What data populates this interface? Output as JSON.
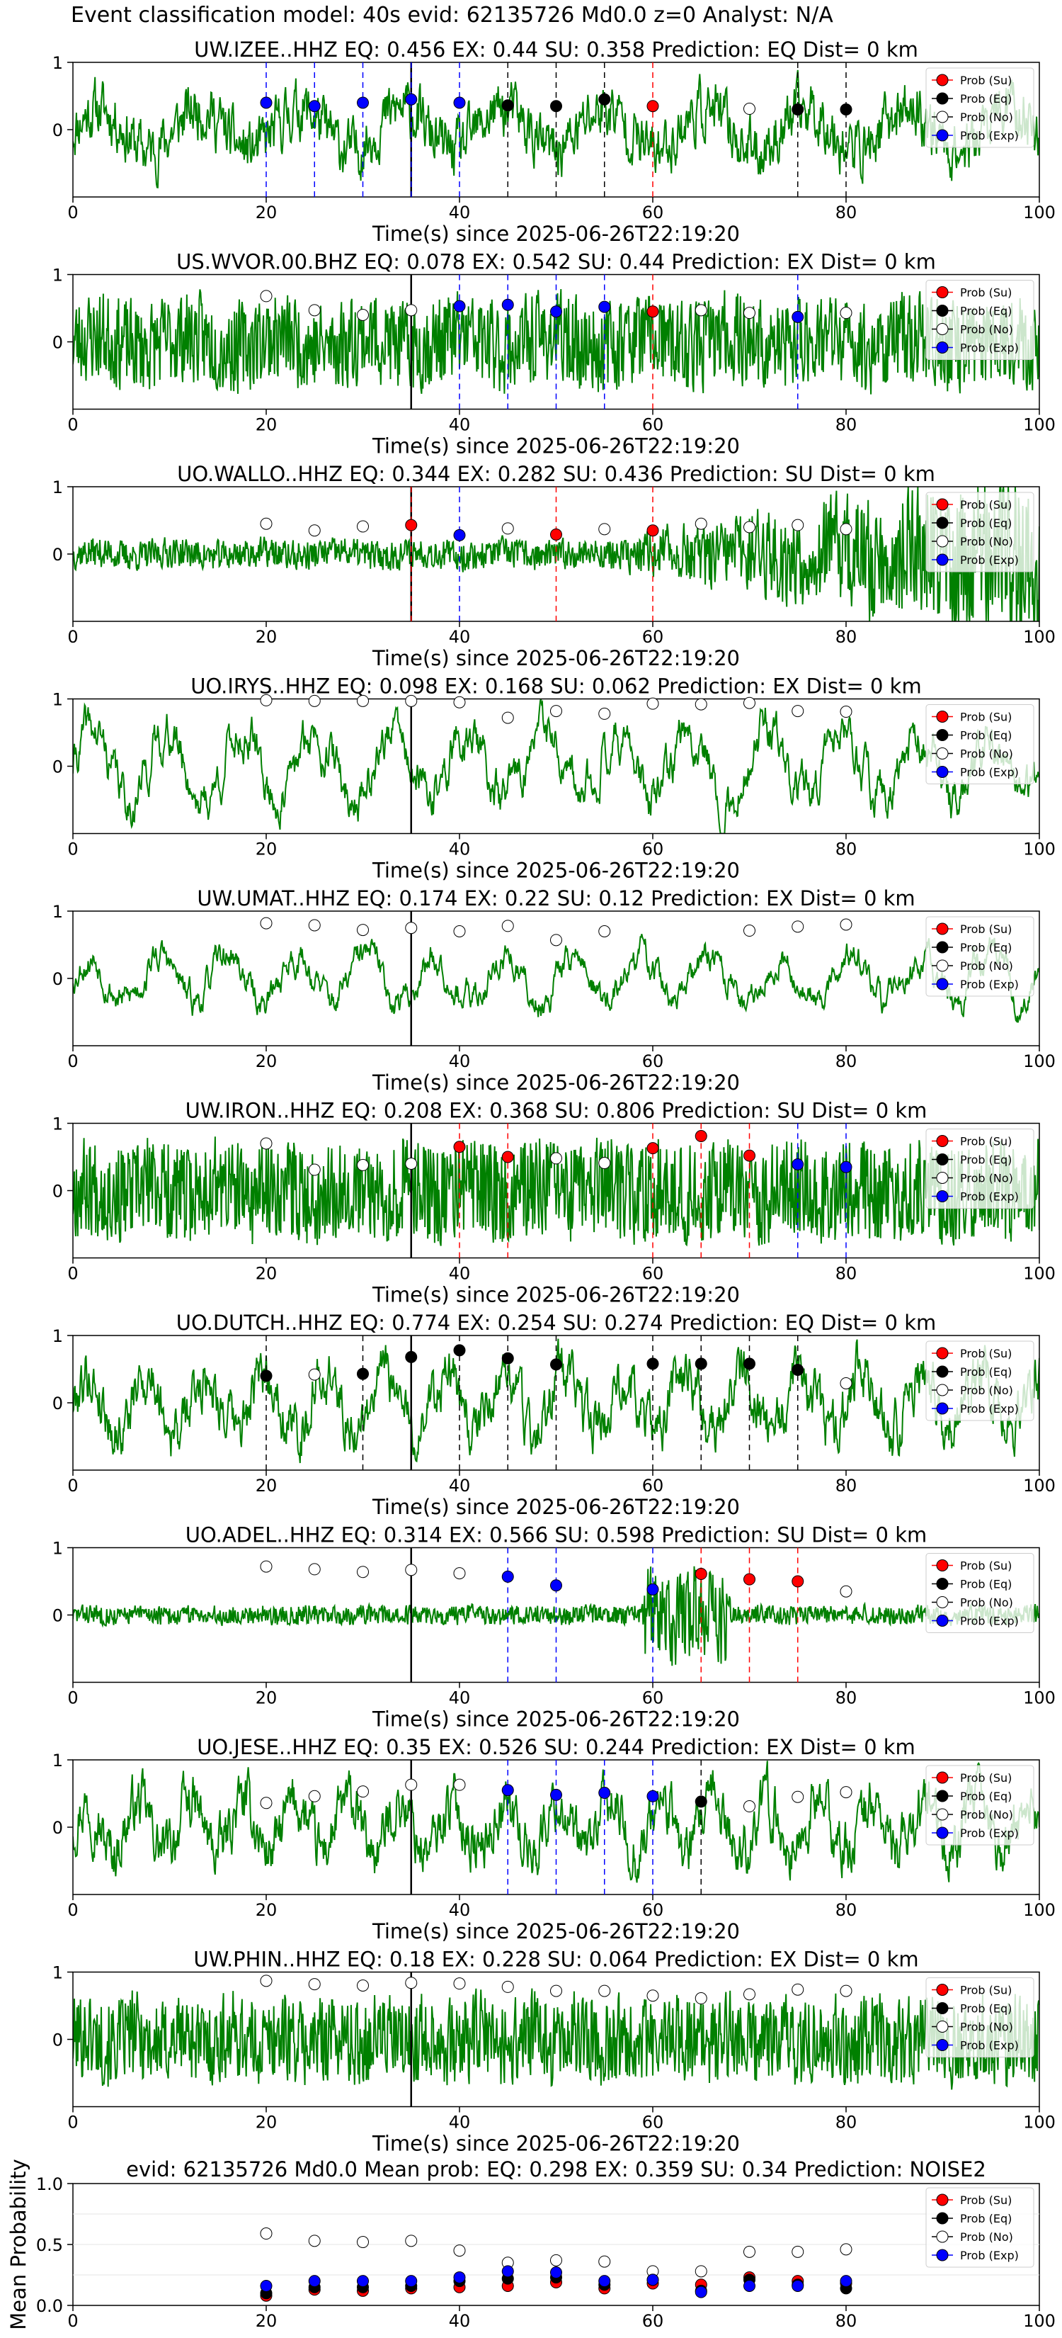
{
  "figure_title": "Event classification model: 40s evid: 62135726 Md0.0 z=0 Analyst: N/A",
  "chart_data": {
    "type": "line",
    "x_range": [
      0,
      100
    ],
    "x_ticks": [
      0,
      20,
      40,
      60,
      80,
      100
    ],
    "waveform_color": "#008000",
    "origin_time_line_x": 35,
    "legend": {
      "placement": "top-right",
      "entries": [
        {
          "label": "Prob (Su)",
          "color": "#ff0000",
          "key": "su"
        },
        {
          "label": "Prob (Eq)",
          "color": "#000000",
          "key": "eq"
        },
        {
          "label": "Prob (No)",
          "color": "#ffffff",
          "key": "no"
        },
        {
          "label": "Prob (Exp)",
          "color": "#0000ff",
          "key": "ex"
        }
      ]
    },
    "probability_window_starts": [
      20,
      25,
      30,
      35,
      40,
      45,
      50,
      55,
      60,
      65,
      70,
      75,
      80
    ],
    "stations": [
      {
        "title": "UW.IZEE..HHZ   EQ: 0.456  EX: 0.44  SU: 0.358   Prediction: EQ    Dist= 0 km",
        "xlabel": "Time(s) since 2025-06-26T22:19:20",
        "y_ticks": [
          "1",
          "0"
        ],
        "amplitude": 0.34,
        "smooth": 0.55,
        "baseline": 0.4,
        "seed": 11,
        "markers": [
          {
            "x": 20,
            "cls": "ex",
            "p": 0.4
          },
          {
            "x": 25,
            "cls": "ex",
            "p": 0.35
          },
          {
            "x": 30,
            "cls": "ex",
            "p": 0.4
          },
          {
            "x": 35,
            "cls": "ex",
            "p": 0.45
          },
          {
            "x": 40,
            "cls": "ex",
            "p": 0.4
          },
          {
            "x": 45,
            "cls": "eq",
            "p": 0.36
          },
          {
            "x": 50,
            "cls": "eq",
            "p": 0.35
          },
          {
            "x": 55,
            "cls": "eq",
            "p": 0.45
          },
          {
            "x": 60,
            "cls": "su",
            "p": 0.35
          },
          {
            "x": 70,
            "cls": "no",
            "p": 0.31
          },
          {
            "x": 75,
            "cls": "eq",
            "p": 0.3
          },
          {
            "x": 80,
            "cls": "eq",
            "p": 0.3
          }
        ]
      },
      {
        "title": "US.WVOR.00.BHZ   EQ: 0.078  EX: 0.542  SU: 0.44   Prediction: EX    Dist= 0 km",
        "xlabel": "Time(s) since 2025-06-26T22:19:20",
        "y_ticks": [
          "1",
          "0"
        ],
        "amplitude": 0.35,
        "smooth": 0.15,
        "baseline": 0.0,
        "seed": 23,
        "markers": [
          {
            "x": 20,
            "cls": "no",
            "p": 0.68
          },
          {
            "x": 25,
            "cls": "no",
            "p": 0.47
          },
          {
            "x": 30,
            "cls": "no",
            "p": 0.4
          },
          {
            "x": 35,
            "cls": "no",
            "p": 0.47
          },
          {
            "x": 40,
            "cls": "ex",
            "p": 0.53
          },
          {
            "x": 45,
            "cls": "ex",
            "p": 0.55
          },
          {
            "x": 50,
            "cls": "ex",
            "p": 0.45
          },
          {
            "x": 55,
            "cls": "ex",
            "p": 0.52
          },
          {
            "x": 60,
            "cls": "su",
            "p": 0.45
          },
          {
            "x": 65,
            "cls": "no",
            "p": 0.47
          },
          {
            "x": 70,
            "cls": "no",
            "p": 0.43
          },
          {
            "x": 75,
            "cls": "ex",
            "p": 0.37
          },
          {
            "x": 80,
            "cls": "no",
            "p": 0.43
          }
        ]
      },
      {
        "title": "UO.WALLO..HHZ   EQ: 0.344  EX: 0.282  SU: 0.436   Prediction: SU    Dist= 0 km",
        "xlabel": "Time(s) since 2025-06-26T22:19:20",
        "y_ticks": [
          "1",
          "0"
        ],
        "amplitude": 0.12,
        "smooth": 0.2,
        "baseline": 0.0,
        "seed": 37,
        "growth": true,
        "markers": [
          {
            "x": 20,
            "cls": "no",
            "p": 0.45
          },
          {
            "x": 25,
            "cls": "no",
            "p": 0.35
          },
          {
            "x": 30,
            "cls": "no",
            "p": 0.41
          },
          {
            "x": 35,
            "cls": "su",
            "p": 0.43
          },
          {
            "x": 40,
            "cls": "ex",
            "p": 0.28
          },
          {
            "x": 45,
            "cls": "no",
            "p": 0.38
          },
          {
            "x": 50,
            "cls": "su",
            "p": 0.29
          },
          {
            "x": 55,
            "cls": "no",
            "p": 0.37
          },
          {
            "x": 60,
            "cls": "su",
            "p": 0.35
          },
          {
            "x": 65,
            "cls": "no",
            "p": 0.45
          },
          {
            "x": 70,
            "cls": "no",
            "p": 0.4
          },
          {
            "x": 75,
            "cls": "no",
            "p": 0.43
          },
          {
            "x": 80,
            "cls": "no",
            "p": 0.37
          }
        ]
      },
      {
        "title": "UO.IRYS..HHZ   EQ: 0.098  EX: 0.168  SU: 0.062   Prediction: EX    Dist= 0 km",
        "xlabel": "Time(s) since 2025-06-26T22:19:20",
        "y_ticks": [
          "1",
          "0"
        ],
        "amplitude": 0.55,
        "smooth": 0.82,
        "baseline": 0.0,
        "seed": 41,
        "markers": [
          {
            "x": 20,
            "cls": "no",
            "p": 0.98
          },
          {
            "x": 25,
            "cls": "no",
            "p": 0.97
          },
          {
            "x": 30,
            "cls": "no",
            "p": 0.97
          },
          {
            "x": 35,
            "cls": "no",
            "p": 0.97
          },
          {
            "x": 40,
            "cls": "no",
            "p": 0.95
          },
          {
            "x": 45,
            "cls": "no",
            "p": 0.72
          },
          {
            "x": 50,
            "cls": "no",
            "p": 0.82
          },
          {
            "x": 55,
            "cls": "no",
            "p": 0.78
          },
          {
            "x": 60,
            "cls": "no",
            "p": 0.93
          },
          {
            "x": 65,
            "cls": "no",
            "p": 0.92
          },
          {
            "x": 70,
            "cls": "no",
            "p": 0.94
          },
          {
            "x": 75,
            "cls": "no",
            "p": 0.82
          },
          {
            "x": 80,
            "cls": "no",
            "p": 0.81
          }
        ]
      },
      {
        "title": "UW.UMAT..HHZ   EQ: 0.174  EX: 0.22  SU: 0.12   Prediction: EX    Dist= 0 km",
        "xlabel": "Time(s) since 2025-06-26T22:19:20",
        "y_ticks": [
          "1",
          "0"
        ],
        "amplitude": 0.38,
        "smooth": 0.82,
        "baseline": 0.0,
        "seed": 53,
        "markers": [
          {
            "x": 20,
            "cls": "no",
            "p": 0.82
          },
          {
            "x": 25,
            "cls": "no",
            "p": 0.79
          },
          {
            "x": 30,
            "cls": "no",
            "p": 0.72
          },
          {
            "x": 35,
            "cls": "no",
            "p": 0.75
          },
          {
            "x": 40,
            "cls": "no",
            "p": 0.7
          },
          {
            "x": 45,
            "cls": "no",
            "p": 0.78
          },
          {
            "x": 50,
            "cls": "no",
            "p": 0.57
          },
          {
            "x": 55,
            "cls": "no",
            "p": 0.7
          },
          {
            "x": 70,
            "cls": "no",
            "p": 0.71
          },
          {
            "x": 75,
            "cls": "no",
            "p": 0.77
          },
          {
            "x": 80,
            "cls": "no",
            "p": 0.8
          }
        ]
      },
      {
        "title": "UW.IRON..HHZ   EQ: 0.208  EX: 0.368  SU: 0.806   Prediction: SU    Dist= 0 km",
        "xlabel": "Time(s) since 2025-06-26T22:19:20",
        "y_ticks": [
          "1",
          "0"
        ],
        "amplitude": 0.35,
        "smooth": 0.05,
        "baseline": 0.0,
        "seed": 67,
        "markers": [
          {
            "x": 20,
            "cls": "no",
            "p": 0.7
          },
          {
            "x": 25,
            "cls": "no",
            "p": 0.31
          },
          {
            "x": 30,
            "cls": "no",
            "p": 0.38
          },
          {
            "x": 35,
            "cls": "no",
            "p": 0.4
          },
          {
            "x": 40,
            "cls": "su",
            "p": 0.65
          },
          {
            "x": 45,
            "cls": "su",
            "p": 0.5
          },
          {
            "x": 50,
            "cls": "no",
            "p": 0.48
          },
          {
            "x": 55,
            "cls": "no",
            "p": 0.41
          },
          {
            "x": 60,
            "cls": "su",
            "p": 0.63
          },
          {
            "x": 65,
            "cls": "su",
            "p": 0.81
          },
          {
            "x": 70,
            "cls": "su",
            "p": 0.52
          },
          {
            "x": 75,
            "cls": "ex",
            "p": 0.39
          },
          {
            "x": 80,
            "cls": "ex",
            "p": 0.35
          }
        ]
      },
      {
        "title": "UO.DUTCH..HHZ   EQ: 0.774  EX: 0.254  SU: 0.274   Prediction: EQ    Dist= 0 km",
        "xlabel": "Time(s) since 2025-06-26T22:19:20",
        "y_ticks": [
          "1",
          "0"
        ],
        "amplitude": 0.45,
        "smooth": 0.7,
        "baseline": 0.0,
        "seed": 79,
        "markers": [
          {
            "x": 20,
            "cls": "eq",
            "p": 0.4
          },
          {
            "x": 25,
            "cls": "no",
            "p": 0.42
          },
          {
            "x": 30,
            "cls": "eq",
            "p": 0.43
          },
          {
            "x": 35,
            "cls": "eq",
            "p": 0.68
          },
          {
            "x": 40,
            "cls": "eq",
            "p": 0.78
          },
          {
            "x": 45,
            "cls": "eq",
            "p": 0.66
          },
          {
            "x": 50,
            "cls": "eq",
            "p": 0.57
          },
          {
            "x": 60,
            "cls": "eq",
            "p": 0.58
          },
          {
            "x": 65,
            "cls": "eq",
            "p": 0.58
          },
          {
            "x": 70,
            "cls": "eq",
            "p": 0.58
          },
          {
            "x": 75,
            "cls": "eq",
            "p": 0.49
          },
          {
            "x": 80,
            "cls": "no",
            "p": 0.29
          }
        ]
      },
      {
        "title": "UO.ADEL..HHZ   EQ: 0.314  EX: 0.566  SU: 0.598   Prediction: SU    Dist= 0 km",
        "xlabel": "Time(s) since 2025-06-26T22:19:20",
        "y_ticks": [
          "1",
          "0"
        ],
        "amplitude": 0.07,
        "smooth": 0.1,
        "baseline": 0.0,
        "seed": 83,
        "burst": [
          59,
          68
        ],
        "markers": [
          {
            "x": 20,
            "cls": "no",
            "p": 0.72
          },
          {
            "x": 25,
            "cls": "no",
            "p": 0.68
          },
          {
            "x": 30,
            "cls": "no",
            "p": 0.64
          },
          {
            "x": 35,
            "cls": "no",
            "p": 0.67
          },
          {
            "x": 40,
            "cls": "no",
            "p": 0.62
          },
          {
            "x": 45,
            "cls": "ex",
            "p": 0.57
          },
          {
            "x": 50,
            "cls": "ex",
            "p": 0.44
          },
          {
            "x": 60,
            "cls": "ex",
            "p": 0.38
          },
          {
            "x": 65,
            "cls": "su",
            "p": 0.61
          },
          {
            "x": 70,
            "cls": "su",
            "p": 0.53
          },
          {
            "x": 75,
            "cls": "su",
            "p": 0.5
          },
          {
            "x": 80,
            "cls": "no",
            "p": 0.35
          }
        ]
      },
      {
        "title": "UO.JESE..HHZ   EQ: 0.35  EX: 0.526  SU: 0.244   Prediction: EX    Dist= 0 km",
        "xlabel": "Time(s) since 2025-06-26T22:19:20",
        "y_ticks": [
          "1",
          "0"
        ],
        "amplitude": 0.4,
        "smooth": 0.65,
        "baseline": 0.0,
        "seed": 97,
        "markers": [
          {
            "x": 20,
            "cls": "no",
            "p": 0.36
          },
          {
            "x": 25,
            "cls": "no",
            "p": 0.46
          },
          {
            "x": 30,
            "cls": "no",
            "p": 0.53
          },
          {
            "x": 35,
            "cls": "no",
            "p": 0.63
          },
          {
            "x": 40,
            "cls": "no",
            "p": 0.63
          },
          {
            "x": 45,
            "cls": "ex",
            "p": 0.55
          },
          {
            "x": 50,
            "cls": "ex",
            "p": 0.48
          },
          {
            "x": 55,
            "cls": "ex",
            "p": 0.51
          },
          {
            "x": 60,
            "cls": "ex",
            "p": 0.46
          },
          {
            "x": 65,
            "cls": "eq",
            "p": 0.38
          },
          {
            "x": 70,
            "cls": "no",
            "p": 0.31
          },
          {
            "x": 75,
            "cls": "no",
            "p": 0.45
          },
          {
            "x": 80,
            "cls": "no",
            "p": 0.52
          }
        ]
      },
      {
        "title": "UW.PHIN..HHZ   EQ: 0.18  EX: 0.228  SU: 0.064   Prediction: EX    Dist= 0 km",
        "xlabel": "Time(s) since 2025-06-26T22:19:20",
        "y_ticks": [
          "1",
          "0"
        ],
        "amplitude": 0.32,
        "smooth": 0.1,
        "baseline": 0.0,
        "seed": 101,
        "markers": [
          {
            "x": 20,
            "cls": "no",
            "p": 0.87
          },
          {
            "x": 25,
            "cls": "no",
            "p": 0.82
          },
          {
            "x": 30,
            "cls": "no",
            "p": 0.8
          },
          {
            "x": 35,
            "cls": "no",
            "p": 0.84
          },
          {
            "x": 40,
            "cls": "no",
            "p": 0.83
          },
          {
            "x": 45,
            "cls": "no",
            "p": 0.78
          },
          {
            "x": 50,
            "cls": "no",
            "p": 0.72
          },
          {
            "x": 55,
            "cls": "no",
            "p": 0.72
          },
          {
            "x": 60,
            "cls": "no",
            "p": 0.65
          },
          {
            "x": 65,
            "cls": "no",
            "p": 0.61
          },
          {
            "x": 70,
            "cls": "no",
            "p": 0.67
          },
          {
            "x": 75,
            "cls": "no",
            "p": 0.74
          },
          {
            "x": 80,
            "cls": "no",
            "p": 0.72
          }
        ]
      }
    ],
    "mean_panel": {
      "title": "evid: 62135726  Md0.0   Mean prob:   EQ: 0.298  EX: 0.359  SU: 0.34   Prediction: NOISE2",
      "ylabel": "Mean Probability",
      "ylim": [
        0,
        1.0
      ],
      "y_ticks": [
        "0.0",
        "0.5",
        "1.0"
      ],
      "x": [
        20,
        25,
        30,
        35,
        40,
        45,
        50,
        55,
        60,
        65,
        70,
        75,
        80
      ],
      "su": [
        0.08,
        0.13,
        0.12,
        0.14,
        0.15,
        0.16,
        0.19,
        0.14,
        0.18,
        0.17,
        0.23,
        0.2,
        0.18
      ],
      "eq": [
        0.1,
        0.15,
        0.15,
        0.16,
        0.2,
        0.22,
        0.23,
        0.17,
        0.21,
        0.12,
        0.21,
        0.17,
        0.14
      ],
      "no": [
        0.59,
        0.53,
        0.52,
        0.53,
        0.45,
        0.35,
        0.37,
        0.36,
        0.28,
        0.28,
        0.44,
        0.44,
        0.46
      ],
      "ex": [
        0.16,
        0.2,
        0.2,
        0.2,
        0.23,
        0.28,
        0.27,
        0.2,
        0.21,
        0.11,
        0.16,
        0.16,
        0.2
      ]
    }
  }
}
